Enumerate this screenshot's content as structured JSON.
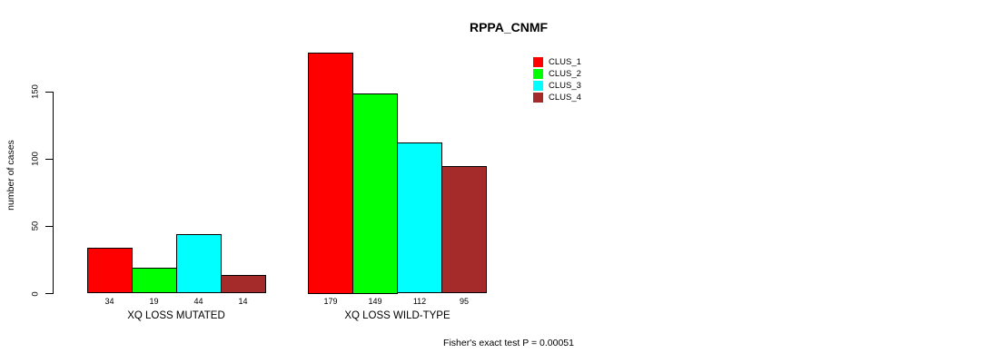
{
  "chart_data": {
    "type": "bar",
    "title": "RPPA_CNMF",
    "ylabel": "number of cases",
    "xlabel": "",
    "yticks": [
      0,
      50,
      100,
      150
    ],
    "ylim": [
      0,
      185
    ],
    "grid": false,
    "legend_position": "top-right",
    "categories": [
      "XQ LOSS MUTATED",
      "XQ LOSS WILD-TYPE"
    ],
    "series": [
      {
        "name": "CLUS_1",
        "color": "#FF0000",
        "values": [
          34,
          179
        ]
      },
      {
        "name": "CLUS_2",
        "color": "#00FF00",
        "values": [
          19,
          149
        ]
      },
      {
        "name": "CLUS_3",
        "color": "#00FFFF",
        "values": [
          44,
          112
        ]
      },
      {
        "name": "CLUS_4",
        "color": "#A52A2A",
        "values": [
          14,
          95
        ]
      }
    ],
    "bar_value_labels": [
      [
        "34",
        "19",
        "44",
        "14"
      ],
      [
        "179",
        "149",
        "112",
        "95"
      ]
    ],
    "annotation": "Fisher's exact test P = 0.00051"
  }
}
